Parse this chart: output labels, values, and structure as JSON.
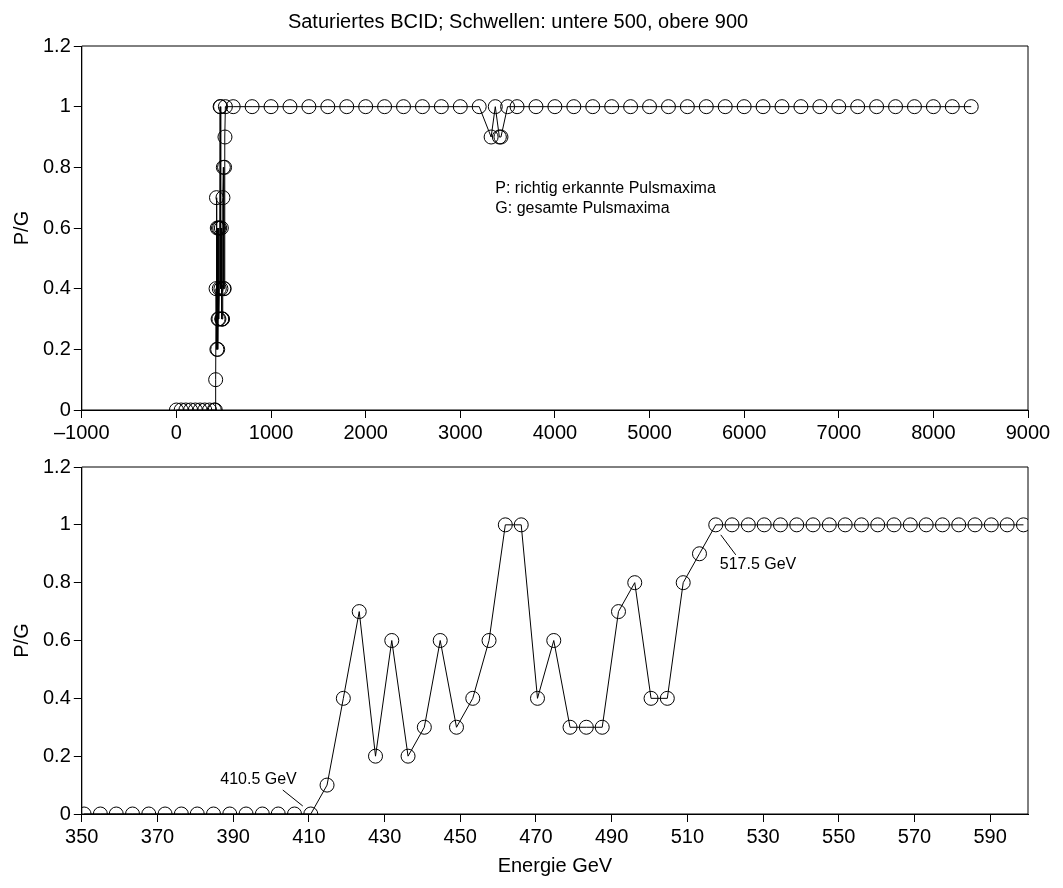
{
  "chart_data": [
    {
      "type": "line",
      "title": "Saturiertes BCID; Schwellen: untere 500, obere 900",
      "ylabel": "P/G",
      "xlim": [
        -1000,
        9000
      ],
      "xticks": [
        {
          "value": -1000,
          "label": "–1000"
        },
        0,
        1000,
        2000,
        3000,
        4000,
        5000,
        6000,
        7000,
        8000,
        9000
      ],
      "ylim": [
        0,
        1.2
      ],
      "yticks": [
        0,
        0.2,
        0.4,
        0.6,
        0.8,
        1,
        1.2
      ],
      "grid": false,
      "legend": false,
      "marker": "circle",
      "line_style": "solid",
      "annotations": [
        "P: richtig erkannte Pulsmaxima",
        "G: gesamte Pulsmaxima"
      ],
      "series": [
        {
          "color": "#000000",
          "x": [
            0,
            50,
            100,
            150,
            200,
            250,
            300,
            350,
            400,
            410.5,
            414.8,
            419.1,
            423.3,
            427.6,
            431.9,
            436.2,
            440.5,
            444.7,
            449.0,
            453.3,
            457.6,
            461.9,
            466.1,
            470.4,
            474.7,
            479.0,
            483.3,
            487.5,
            491.8,
            496.1,
            500.4,
            504.7,
            508.9,
            513.2,
            517.5,
            600,
            800,
            1000,
            1200,
            1400,
            1600,
            1800,
            2000,
            2200,
            2400,
            2600,
            2800,
            3000,
            3200,
            3326,
            3370,
            3413,
            3430,
            3500,
            3600,
            3800,
            4000,
            4200,
            4400,
            4600,
            4800,
            5000,
            5200,
            5400,
            5600,
            5800,
            6000,
            6200,
            6400,
            6600,
            6800,
            7000,
            7200,
            7400,
            7600,
            7800,
            8000,
            8200,
            8400
          ],
          "values": [
            0,
            0,
            0,
            0,
            0,
            0,
            0,
            0,
            0,
            0,
            0.1,
            0.4,
            0.7,
            0.2,
            0.6,
            0.2,
            0.3,
            0.6,
            0.3,
            0.4,
            0.6,
            1,
            1,
            0.4,
            0.6,
            0.3,
            0.3,
            0.3,
            0.7,
            0.8,
            0.4,
            0.4,
            0.8,
            0.9,
            1,
            1,
            1,
            1,
            1,
            1,
            1,
            1,
            1,
            1,
            1,
            1,
            1,
            1,
            1,
            0.9,
            1,
            0.9,
            0.9,
            1,
            1,
            1,
            1,
            1,
            1,
            1,
            1,
            1,
            1,
            1,
            1,
            1,
            1,
            1,
            1,
            1,
            1,
            1,
            1,
            1,
            1,
            1,
            1,
            1,
            1
          ]
        }
      ]
    },
    {
      "type": "line",
      "xlabel": "Energie GeV",
      "ylabel": "P/G",
      "xlim": [
        350,
        600
      ],
      "xticks": [
        350,
        370,
        390,
        410,
        430,
        450,
        470,
        490,
        510,
        530,
        550,
        570,
        590
      ],
      "ylim": [
        0,
        1.2
      ],
      "yticks": [
        0,
        0.2,
        0.4,
        0.6,
        0.8,
        1,
        1.2
      ],
      "grid": false,
      "legend": false,
      "marker": "circle",
      "line_style": "solid",
      "annotations": [
        {
          "text": "410.5 GeV",
          "x": 410.5,
          "y": 0
        },
        {
          "text": "517.5 GeV",
          "x": 517.5,
          "y": 1
        }
      ],
      "series": [
        {
          "color": "#000000",
          "x": [
            350.6,
            354.9,
            359.1,
            363.4,
            367.7,
            372.0,
            376.3,
            380.5,
            384.8,
            389.1,
            393.4,
            397.7,
            401.9,
            406.2,
            410.5,
            414.8,
            419.1,
            423.3,
            427.6,
            431.9,
            436.2,
            440.5,
            444.7,
            449.0,
            453.3,
            457.6,
            461.9,
            466.1,
            470.4,
            474.7,
            479.0,
            483.3,
            487.5,
            491.8,
            496.1,
            500.4,
            504.7,
            508.9,
            513.2,
            517.5,
            521.8,
            526.1,
            530.3,
            534.6,
            538.9,
            543.2,
            547.5,
            551.7,
            556.0,
            560.3,
            564.6,
            568.9,
            573.1,
            577.4,
            581.7,
            586.0,
            590.3,
            594.5,
            598.8
          ],
          "values": [
            0,
            0,
            0,
            0,
            0,
            0,
            0,
            0,
            0,
            0,
            0,
            0,
            0,
            0,
            0,
            0.1,
            0.4,
            0.7,
            0.2,
            0.6,
            0.2,
            0.3,
            0.6,
            0.3,
            0.4,
            0.6,
            1,
            1,
            0.4,
            0.6,
            0.3,
            0.3,
            0.3,
            0.7,
            0.8,
            0.4,
            0.4,
            0.8,
            0.9,
            1,
            1,
            1,
            1,
            1,
            1,
            1,
            1,
            1,
            1,
            1,
            1,
            1,
            1,
            1,
            1,
            1,
            1,
            1,
            1
          ]
        }
      ]
    }
  ]
}
